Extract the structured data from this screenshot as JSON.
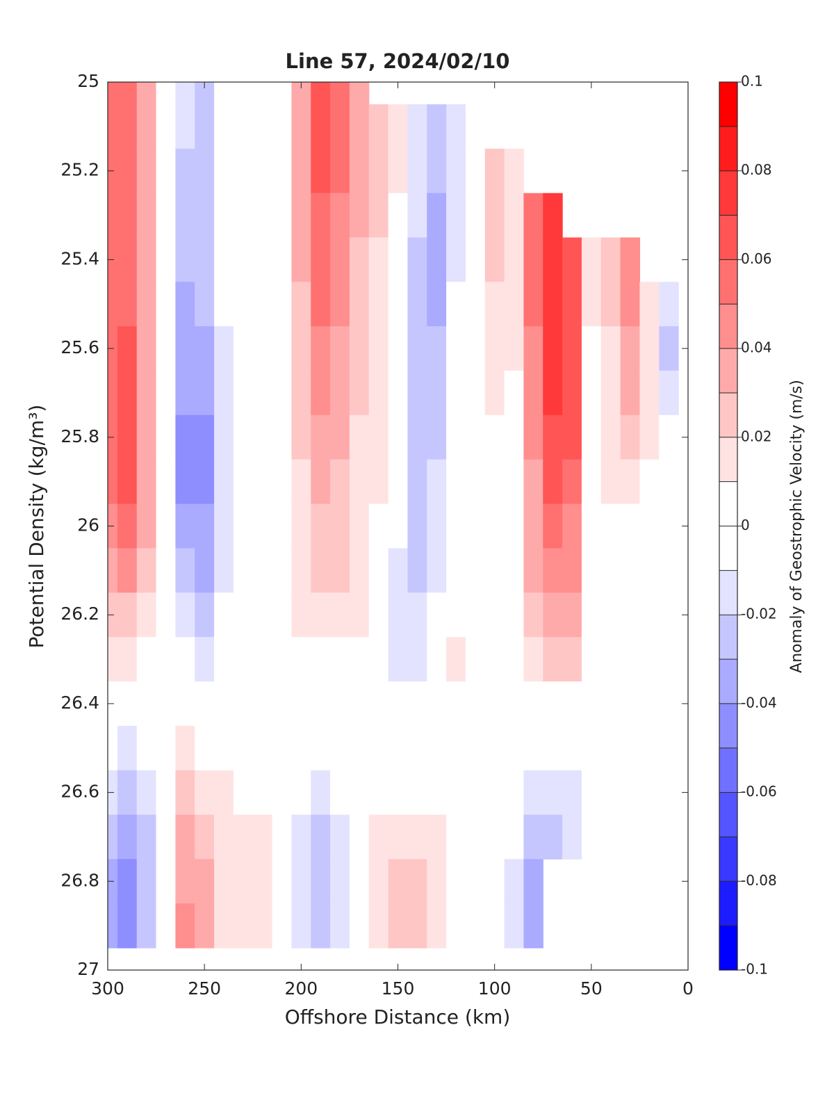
{
  "chart_data": {
    "type": "contourf",
    "title": "Line 57, 2024/02/10",
    "xlabel": "Offshore Distance (km)",
    "ylabel": "Potential Density (kg/m³)",
    "colorbar_label": "Anomaly of Geostrophic Velocity (m/s)",
    "xlim": [
      300,
      0
    ],
    "xticks": [
      300,
      250,
      200,
      150,
      100,
      50,
      0
    ],
    "ylim": [
      25,
      27
    ],
    "yticks": [
      25,
      25.2,
      25.4,
      25.6,
      25.8,
      26,
      26.2,
      26.4,
      26.6,
      26.8,
      27
    ],
    "clim": [
      -0.1,
      0.1
    ],
    "cticks": [
      0.1,
      0.08,
      0.06,
      0.04,
      0.02,
      0,
      -0.02,
      -0.04,
      -0.06,
      -0.08,
      -0.1
    ],
    "nlevels": 20,
    "colormap": {
      "low": "#0000ff",
      "mid": "#ffffff",
      "high": "#ff0000"
    },
    "x": [
      300,
      290,
      280,
      270,
      260,
      250,
      240,
      230,
      220,
      210,
      200,
      190,
      180,
      170,
      160,
      150,
      140,
      130,
      120,
      110,
      100,
      90,
      80,
      70,
      60,
      50,
      40,
      30,
      20,
      10
    ],
    "y": [
      25.0,
      25.1,
      25.2,
      25.3,
      25.4,
      25.5,
      25.6,
      25.7,
      25.8,
      25.9,
      26.0,
      26.1,
      26.2,
      26.3,
      26.4,
      26.5,
      26.6,
      26.7,
      26.8,
      26.9
    ],
    "z": [
      [
        0.05,
        0.05,
        0.05,
        0.05,
        0.05,
        0.05,
        0.05,
        0.05,
        0.05,
        0.05,
        0.04,
        0.03,
        0.02,
        0.01,
        0,
        -0.01,
        -0.02,
        -0.03,
        -0.04,
        -0.04
      ],
      [
        0.05,
        0.05,
        0.05,
        0.05,
        0.05,
        0.05,
        0.06,
        0.06,
        0.06,
        0.06,
        0.05,
        0.04,
        0.02,
        0.01,
        0,
        -0.02,
        -0.03,
        -0.04,
        -0.05,
        -0.05
      ],
      [
        0.03,
        0.03,
        0.03,
        0.03,
        0.03,
        0.03,
        0.03,
        0.03,
        0.03,
        0.03,
        0.03,
        0.02,
        0.01,
        0,
        0,
        -0.01,
        -0.02,
        -0.03,
        -0.03,
        -0.03
      ],
      [
        0,
        0,
        0,
        0,
        0,
        0,
        0,
        0,
        0,
        0,
        0,
        0,
        0,
        0,
        0,
        0,
        0,
        0,
        0,
        0
      ],
      [
        -0.02,
        -0.02,
        -0.03,
        -0.03,
        -0.03,
        -0.04,
        -0.04,
        -0.04,
        -0.05,
        -0.05,
        -0.04,
        -0.03,
        -0.02,
        -0.01,
        0,
        0.01,
        0.02,
        0.03,
        0.03,
        0.04
      ],
      [
        -0.03,
        -0.03,
        -0.03,
        -0.03,
        -0.03,
        -0.03,
        -0.04,
        -0.04,
        -0.05,
        -0.05,
        -0.04,
        -0.04,
        -0.03,
        -0.02,
        0,
        0,
        0.01,
        0.02,
        0.03,
        0.03
      ],
      [
        0,
        0,
        0,
        0,
        -0.01,
        -0.01,
        -0.02,
        -0.02,
        -0.02,
        -0.02,
        -0.02,
        -0.02,
        -0.01,
        -0.01,
        0,
        0,
        0.01,
        0.01,
        0.01,
        0.01
      ],
      [
        -0.01,
        -0.01,
        -0.01,
        -0.01,
        -0.01,
        -0.01,
        -0.01,
        -0.01,
        -0.01,
        -0.01,
        -0.01,
        -0.01,
        -0.01,
        0,
        0,
        0,
        0,
        0.01,
        0.01,
        0.01
      ],
      [
        -0.01,
        -0.01,
        -0.01,
        -0.01,
        -0.01,
        -0.01,
        0,
        0,
        0,
        0,
        0,
        0,
        0,
        0,
        0,
        0,
        0,
        0.01,
        0.01,
        0.01
      ],
      [
        0,
        0,
        0,
        0,
        0,
        0,
        0,
        0,
        0,
        0,
        0,
        0,
        0,
        0,
        0,
        0,
        0,
        0,
        0,
        0
      ],
      [
        0.03,
        0.03,
        0.03,
        0.03,
        0.03,
        0.02,
        0.02,
        0.02,
        0.02,
        0.01,
        0.01,
        0.01,
        0.01,
        0,
        0,
        -0.01,
        -0.01,
        -0.02,
        -0.02,
        -0.02
      ],
      [
        0.06,
        0.06,
        0.06,
        0.05,
        0.05,
        0.05,
        0.04,
        0.04,
        0.03,
        0.03,
        0.02,
        0.02,
        0.01,
        0,
        0,
        -0.01,
        -0.02,
        -0.03,
        -0.03,
        -0.03
      ],
      [
        0.05,
        0.05,
        0.05,
        0.04,
        0.04,
        0.04,
        0.03,
        0.03,
        0.03,
        0.02,
        0.02,
        0.02,
        0.01,
        0,
        0,
        0,
        -0.01,
        -0.02,
        -0.02,
        -0.02
      ],
      [
        0.03,
        0.03,
        0.03,
        0.03,
        0.02,
        0.02,
        0.02,
        0.02,
        0.01,
        0.01,
        0.01,
        0.01,
        0.01,
        0,
        0,
        0,
        0,
        -0.01,
        -0.01,
        -0.01
      ],
      [
        null,
        0.02,
        0.02,
        0.02,
        0.01,
        0.01,
        0.01,
        0.01,
        0.01,
        0.01,
        0,
        0,
        0,
        0,
        0,
        0,
        0,
        0.01,
        0.01,
        0.01
      ],
      [
        null,
        0.01,
        0.01,
        0,
        0,
        0,
        -0.01,
        -0.01,
        -0.01,
        -0.01,
        -0.01,
        -0.02,
        -0.02,
        -0.02,
        -0.01,
        0,
        0,
        0.01,
        0.02,
        0.02
      ],
      [
        null,
        -0.02,
        -0.02,
        -0.02,
        -0.03,
        -0.03,
        -0.03,
        -0.03,
        -0.03,
        -0.03,
        -0.03,
        -0.03,
        -0.02,
        -0.02,
        -0.01,
        0,
        0,
        0.01,
        0.02,
        0.02
      ],
      [
        null,
        -0.03,
        -0.03,
        -0.04,
        -0.04,
        -0.04,
        -0.03,
        -0.03,
        -0.03,
        -0.02,
        -0.02,
        -0.02,
        -0.01,
        -0.01,
        -0.01,
        0,
        0,
        0.01,
        0.01,
        0.01
      ],
      [
        null,
        -0.02,
        -0.02,
        -0.02,
        -0.02,
        -0.01,
        -0.01,
        -0.01,
        -0.01,
        -0.01,
        -0.01,
        0,
        0,
        0.01,
        0,
        0,
        0,
        0,
        0,
        0
      ],
      [
        null,
        0,
        0,
        0,
        0,
        0,
        0,
        0,
        0,
        0,
        0,
        0,
        0,
        0,
        0,
        0,
        0,
        0,
        0,
        0
      ],
      [
        null,
        null,
        0.02,
        0.02,
        0.02,
        0.01,
        0.01,
        0.01,
        0,
        0,
        0,
        0,
        0,
        0,
        0,
        0,
        0,
        0,
        0,
        0
      ],
      [
        null,
        null,
        0.01,
        0.01,
        0.01,
        0.01,
        0.01,
        0,
        0,
        0,
        0,
        0,
        0,
        0,
        0,
        0,
        -0.01,
        -0.01,
        -0.02,
        -0.02
      ],
      [
        null,
        null,
        null,
        0.05,
        0.05,
        0.05,
        0.04,
        0.04,
        0.04,
        0.03,
        0.03,
        0.03,
        0.02,
        0.01,
        0,
        -0.01,
        -0.02,
        -0.03,
        -0.04,
        -0.04
      ],
      [
        null,
        null,
        null,
        0.07,
        0.07,
        0.07,
        0.07,
        0.07,
        0.06,
        0.06,
        0.05,
        0.04,
        0.03,
        0.02,
        0,
        -0.01,
        -0.02,
        -0.03,
        null,
        null
      ],
      [
        null,
        null,
        null,
        null,
        0.06,
        0.06,
        0.06,
        0.06,
        0.06,
        0.05,
        0.04,
        0.04,
        0.03,
        0.02,
        0,
        -0.01,
        -0.02,
        -0.02,
        null,
        null
      ],
      [
        null,
        null,
        null,
        null,
        0.01,
        0.01,
        0,
        0,
        0,
        0,
        0,
        0,
        0,
        0,
        0,
        -0.01,
        -0.01,
        -0.01,
        null,
        null
      ],
      [
        null,
        null,
        null,
        null,
        0.02,
        0.02,
        0.01,
        0.01,
        0.01,
        0.01,
        0,
        -0.01,
        -0.01,
        -0.01,
        -0.01,
        -0.01,
        -0.01,
        -0.01,
        null,
        null
      ],
      [
        null,
        null,
        null,
        null,
        0.04,
        0.04,
        0.03,
        0.03,
        0.02,
        0.01,
        0,
        -0.01,
        -0.01,
        -0.01,
        -0.01,
        -0.01,
        -0.01,
        0,
        null,
        null
      ],
      [
        null,
        null,
        null,
        null,
        null,
        0.01,
        0.01,
        0.01,
        0.01,
        0,
        0,
        0,
        0,
        0,
        0,
        0,
        0,
        0,
        null,
        null
      ],
      [
        null,
        null,
        null,
        null,
        null,
        -0.02,
        -0.03,
        -0.02,
        -0.01,
        -0.01,
        0,
        0,
        0,
        0,
        0,
        0,
        0,
        0,
        null,
        null
      ]
    ]
  }
}
